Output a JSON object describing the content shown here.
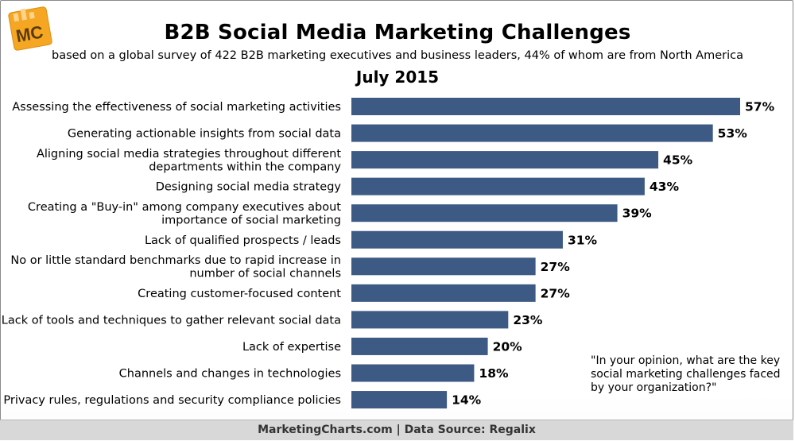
{
  "header": {
    "logo_text": "MC",
    "title": "B2B Social Media Marketing Challenges",
    "subtitle": "based on a global survey of 422 B2B marketing executives and business leaders, 44% of whom are from North America",
    "period": "July 2015"
  },
  "question": "\"In your opinion, what are the key social marketing challenges faced by your organization?\"",
  "footer": "MarketingCharts.com | Data Source: Regalix",
  "colors": {
    "bar": "#3c5a84",
    "logo_bg": "#f5a623",
    "footer_bg": "#d8d8d8"
  },
  "chart_data": {
    "type": "bar",
    "orientation": "horizontal",
    "title": "B2B Social Media Marketing Challenges",
    "categories": [
      [
        "Assessing the effectiveness of social marketing activities"
      ],
      [
        "Generating actionable insights from social data"
      ],
      [
        "Aligning social media strategies throughout different",
        "departments within the company"
      ],
      [
        "Designing social media strategy"
      ],
      [
        "Creating a \"Buy-in\" among company executives about",
        "importance of social marketing"
      ],
      [
        "Lack of qualified prospects / leads"
      ],
      [
        "No or little standard benchmarks due to rapid increase in",
        "number of social channels"
      ],
      [
        "Creating customer-focused content"
      ],
      [
        "Lack of tools and techniques to gather relevant social data"
      ],
      [
        "Lack of expertise"
      ],
      [
        "Channels and changes in technologies"
      ],
      [
        "Privacy rules, regulations and security compliance policies"
      ]
    ],
    "values": [
      57,
      53,
      45,
      43,
      39,
      31,
      27,
      27,
      23,
      20,
      18,
      14
    ],
    "value_labels": [
      "57%",
      "53%",
      "45%",
      "43%",
      "39%",
      "31%",
      "27%",
      "27%",
      "23%",
      "20%",
      "18%",
      "14%"
    ],
    "unit": "%",
    "xlim": [
      0,
      57
    ],
    "grid": false,
    "legend": "none"
  }
}
